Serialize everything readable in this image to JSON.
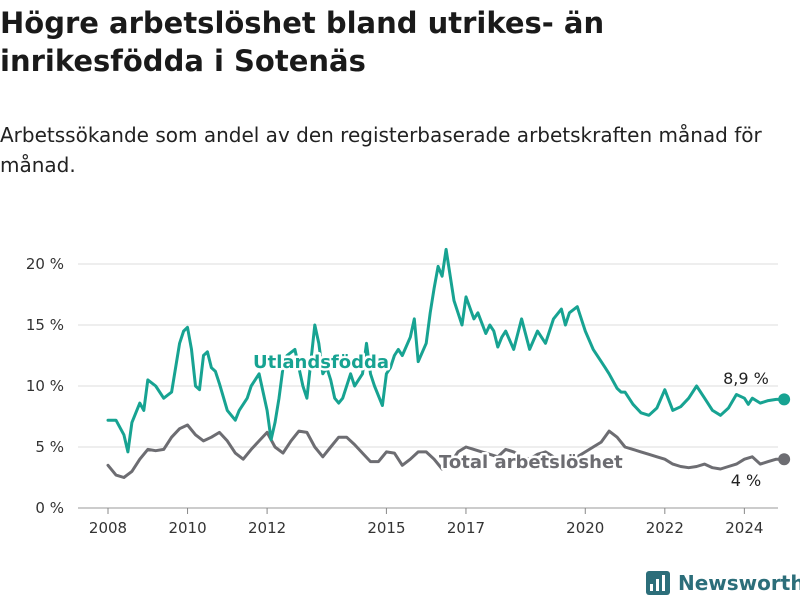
{
  "title": "Högre arbetslöshet bland utrikes- än inrikesfödda i Sotenäs",
  "subtitle": "Arbetssökande som andel av den registerbaserade arbetskraften månad för månad.",
  "brand": {
    "name": "Newsworthy",
    "color": "#2c6e7a"
  },
  "colors": {
    "utlandsfodda": "#17a392",
    "total": "#6d6d72",
    "grid": "#dddddd"
  },
  "chart_data": {
    "type": "line",
    "title": "Högre arbetslöshet bland utrikes- än inrikesfödda i Sotenäs",
    "xlabel": "",
    "ylabel": "",
    "xlim": [
      2008,
      2025.6
    ],
    "ylim": [
      0,
      20
    ],
    "grid": true,
    "x_ticks": [
      2008,
      2010,
      2012,
      2015,
      2017,
      2020,
      2022,
      2024
    ],
    "x_tick_labels": [
      "2008",
      "2010",
      "2012",
      "2015",
      "2017",
      "2020",
      "2022",
      "2024"
    ],
    "y_ticks": [
      0,
      5,
      10,
      15,
      20
    ],
    "y_tick_labels": [
      "0 %",
      "5 %",
      "10 %",
      "15 %",
      "20 %"
    ],
    "series": [
      {
        "name": "Utlandsfödda",
        "end_label": "8,9 %",
        "x": [
          2008.0,
          2008.2,
          2008.4,
          2008.5,
          2008.6,
          2008.8,
          2008.9,
          2009.0,
          2009.2,
          2009.4,
          2009.6,
          2009.8,
          2009.9,
          2010.0,
          2010.1,
          2010.2,
          2010.3,
          2010.4,
          2010.5,
          2010.6,
          2010.7,
          2010.8,
          2011.0,
          2011.2,
          2011.3,
          2011.5,
          2011.6,
          2011.8,
          2012.0,
          2012.1,
          2012.2,
          2012.3,
          2012.4,
          2012.5,
          2012.7,
          2012.9,
          2013.0,
          2013.2,
          2013.3,
          2013.4,
          2013.5,
          2013.6,
          2013.7,
          2013.8,
          2013.9,
          2014.1,
          2014.2,
          2014.4,
          2014.5,
          2014.6,
          2014.7,
          2014.9,
          2015.0,
          2015.1,
          2015.2,
          2015.3,
          2015.4,
          2015.6,
          2015.7,
          2015.8,
          2016.0,
          2016.1,
          2016.2,
          2016.3,
          2016.4,
          2016.5,
          2016.7,
          2016.8,
          2016.9,
          2017.0,
          2017.2,
          2017.3,
          2017.5,
          2017.6,
          2017.7,
          2017.8,
          2017.9,
          2018.0,
          2018.2,
          2018.4,
          2018.6,
          2018.8,
          2019.0,
          2019.2,
          2019.4,
          2019.5,
          2019.6,
          2019.8,
          2020.0,
          2020.2,
          2020.4,
          2020.5,
          2020.6,
          2020.8,
          2020.9,
          2021.0,
          2021.2,
          2021.4,
          2021.6,
          2021.8,
          2022.0,
          2022.2,
          2022.4,
          2022.6,
          2022.8,
          2023.0,
          2023.2,
          2023.4,
          2023.6,
          2023.8,
          2024.0,
          2024.1,
          2024.2,
          2024.4,
          2024.6,
          2024.8,
          2025.0
        ],
        "y": [
          7.2,
          7.2,
          6.0,
          4.6,
          7.0,
          8.6,
          8.0,
          10.5,
          10.0,
          9.0,
          9.5,
          13.5,
          14.5,
          14.8,
          13.0,
          10.0,
          9.7,
          12.5,
          12.8,
          11.5,
          11.2,
          10.2,
          8.0,
          7.2,
          8.0,
          9.0,
          10.0,
          11.0,
          8.0,
          5.6,
          7.0,
          9.0,
          11.5,
          12.5,
          13.0,
          10.0,
          9.0,
          15.0,
          13.5,
          11.0,
          11.5,
          10.5,
          9.0,
          8.6,
          9.0,
          11.0,
          10.0,
          11.0,
          13.5,
          11.0,
          10.0,
          8.4,
          11.0,
          11.5,
          12.5,
          13.0,
          12.5,
          14.0,
          15.5,
          12.0,
          13.5,
          16.0,
          18.0,
          19.8,
          19.0,
          21.2,
          17.0,
          16.0,
          15.0,
          17.3,
          15.5,
          16.0,
          14.3,
          15.0,
          14.5,
          13.2,
          14.0,
          14.5,
          13.0,
          15.5,
          13.0,
          14.5,
          13.5,
          15.5,
          16.3,
          15.0,
          16.0,
          16.5,
          14.5,
          13.0,
          12.0,
          11.5,
          11.0,
          9.8,
          9.5,
          9.5,
          8.5,
          7.8,
          7.6,
          8.2,
          9.7,
          8.0,
          8.3,
          9.0,
          10.0,
          9.0,
          8.0,
          7.6,
          8.2,
          9.3,
          9.0,
          8.5,
          9.0,
          8.6,
          8.8,
          8.9,
          8.9
        ],
        "color": "#17a392"
      },
      {
        "name": "Total arbetslöshet",
        "end_label": "4 %",
        "x": [
          2008.0,
          2008.2,
          2008.4,
          2008.6,
          2008.8,
          2009.0,
          2009.2,
          2009.4,
          2009.6,
          2009.8,
          2010.0,
          2010.2,
          2010.4,
          2010.6,
          2010.8,
          2011.0,
          2011.2,
          2011.4,
          2011.6,
          2011.8,
          2012.0,
          2012.2,
          2012.4,
          2012.6,
          2012.8,
          2013.0,
          2013.2,
          2013.4,
          2013.6,
          2013.8,
          2014.0,
          2014.2,
          2014.4,
          2014.6,
          2014.8,
          2015.0,
          2015.2,
          2015.4,
          2015.6,
          2015.8,
          2016.0,
          2016.2,
          2016.4,
          2016.6,
          2016.8,
          2017.0,
          2017.2,
          2017.4,
          2017.6,
          2017.8,
          2018.0,
          2018.2,
          2018.4,
          2018.6,
          2018.8,
          2019.0,
          2019.2,
          2019.4,
          2019.6,
          2019.8,
          2020.0,
          2020.2,
          2020.4,
          2020.6,
          2020.8,
          2021.0,
          2021.2,
          2021.4,
          2021.6,
          2021.8,
          2022.0,
          2022.2,
          2022.4,
          2022.6,
          2022.8,
          2023.0,
          2023.2,
          2023.4,
          2023.6,
          2023.8,
          2024.0,
          2024.2,
          2024.4,
          2024.6,
          2024.8,
          2025.0
        ],
        "y": [
          3.5,
          2.7,
          2.5,
          3.0,
          4.0,
          4.8,
          4.7,
          4.8,
          5.8,
          6.5,
          6.8,
          6.0,
          5.5,
          5.8,
          6.2,
          5.5,
          4.5,
          4.0,
          4.8,
          5.5,
          6.2,
          5.0,
          4.5,
          5.5,
          6.3,
          6.2,
          5.0,
          4.2,
          5.0,
          5.8,
          5.8,
          5.2,
          4.5,
          3.8,
          3.8,
          4.6,
          4.5,
          3.5,
          4.0,
          4.6,
          4.6,
          4.0,
          3.2,
          3.6,
          4.6,
          5.0,
          4.8,
          4.6,
          4.4,
          4.2,
          4.8,
          4.6,
          4.2,
          4.0,
          4.4,
          4.6,
          4.2,
          4.0,
          4.4,
          4.2,
          4.6,
          5.0,
          5.4,
          6.3,
          5.8,
          5.0,
          4.8,
          4.6,
          4.4,
          4.2,
          4.0,
          3.6,
          3.4,
          3.3,
          3.4,
          3.6,
          3.3,
          3.2,
          3.4,
          3.6,
          4.0,
          4.2,
          3.6,
          3.8,
          4.0,
          4.0
        ],
        "color": "#6d6d72"
      }
    ]
  }
}
